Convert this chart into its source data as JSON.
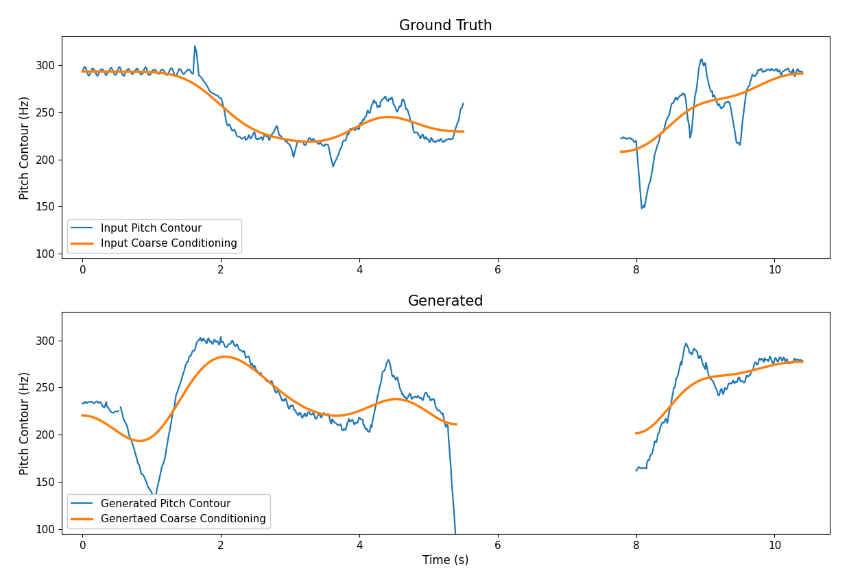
{
  "title1": "Ground Truth",
  "title2": "Generated",
  "ylabel": "Pitch Contour (Hz)",
  "xlabel": "Time (s)",
  "legend1_line1": "Input Pitch Contour",
  "legend1_line2": "Input Coarse Conditioning",
  "legend2_line1": "Generated Pitch Contour",
  "legend2_line2": "Genertaed Coarse Conditioning",
  "color_blue": "#1f77b4",
  "color_orange": "#ff7f0e",
  "ylim": [
    95,
    330
  ],
  "xlim": [
    -0.3,
    10.8
  ],
  "yticks": [
    100,
    150,
    200,
    250,
    300
  ],
  "xticks": [
    0,
    2,
    4,
    6,
    8,
    10
  ],
  "figsize": [
    12.38,
    8.55
  ],
  "dpi": 100
}
